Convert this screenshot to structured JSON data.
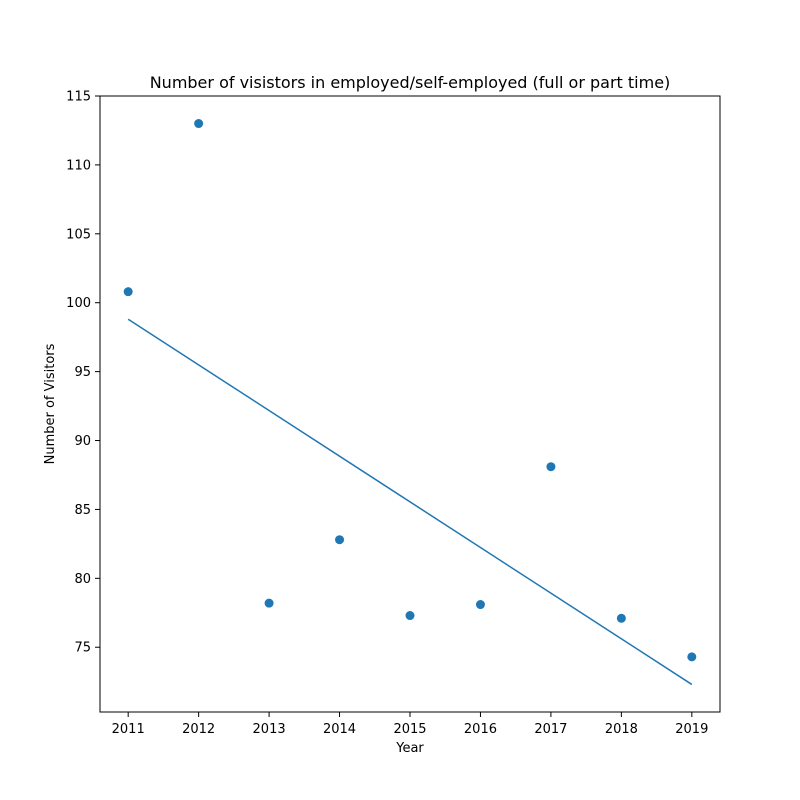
{
  "chart_data": {
    "type": "scatter",
    "title": "Number of visistors in employed/self-employed (full or part time)",
    "xlabel": "Year",
    "ylabel": "Number of Visitors",
    "x": [
      2011,
      2012,
      2013,
      2014,
      2015,
      2016,
      2017,
      2018,
      2019
    ],
    "y": [
      100.8,
      113.0,
      78.2,
      82.8,
      77.3,
      78.1,
      88.1,
      77.1,
      74.3
    ],
    "trend_line": {
      "x": [
        2011,
        2019
      ],
      "y": [
        98.8,
        72.3
      ]
    },
    "xticks": [
      "2011",
      "2012",
      "2013",
      "2014",
      "2015",
      "2016",
      "2017",
      "2018",
      "2019"
    ],
    "yticks": [
      75,
      80,
      85,
      90,
      95,
      100,
      105,
      110,
      115
    ],
    "xlim": [
      2010.6,
      2019.4
    ],
    "ylim": [
      70.3,
      115
    ],
    "grid": false,
    "legend": "none",
    "colors": {
      "series": "#1f77b4",
      "axis": "#000000"
    }
  }
}
